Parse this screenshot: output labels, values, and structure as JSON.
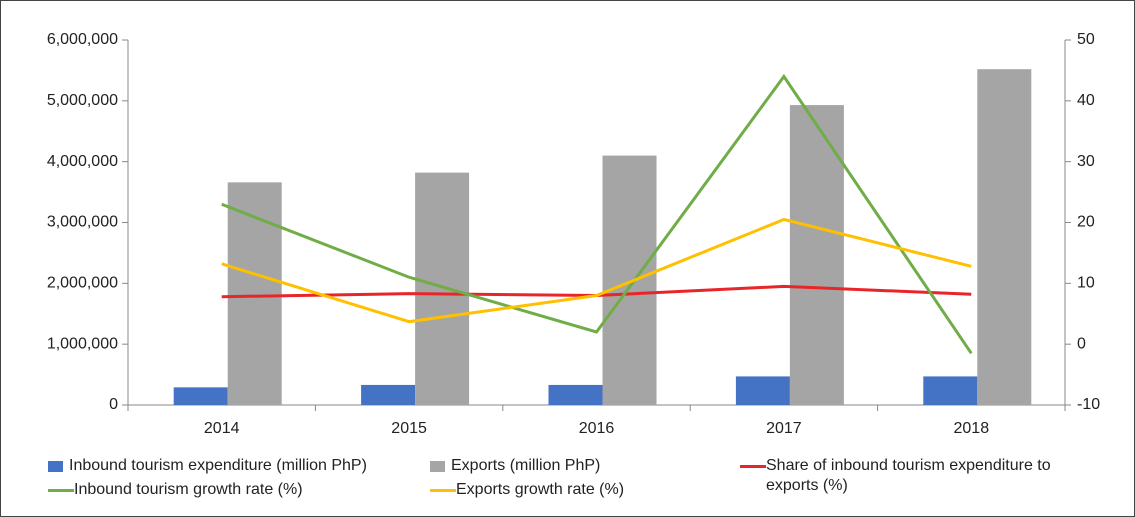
{
  "chart_data": {
    "type": "bar",
    "categories": [
      "2014",
      "2015",
      "2016",
      "2017",
      "2018"
    ],
    "series": [
      {
        "name": "Inbound tourism expenditure (million PhP)",
        "type": "bar",
        "color": "#4472c4",
        "values": [
          290000,
          330000,
          330000,
          470000,
          470000
        ]
      },
      {
        "name": "Exports (million PhP)",
        "type": "bar",
        "color": "#a5a5a5",
        "values": [
          3660000,
          3820000,
          4100000,
          4930000,
          5520000
        ]
      },
      {
        "name": "Share of inbound tourism expenditure to exports (%)",
        "type": "line",
        "axis": "y2",
        "color": "#e8262a",
        "values": [
          7.8,
          8.3,
          8.0,
          9.5,
          8.2
        ]
      },
      {
        "name": "Inbound tourism growth rate (%)",
        "type": "line",
        "axis": "y2",
        "color": "#70ad47",
        "values": [
          23,
          11,
          2,
          44,
          -1.5
        ]
      },
      {
        "name": "Exports growth rate (%)",
        "type": "line",
        "axis": "y2",
        "color": "#ffc000",
        "values": [
          13.2,
          3.7,
          8,
          20.5,
          12.8
        ]
      }
    ],
    "ylim": [
      0,
      6000000
    ],
    "yticks": [
      0,
      {
        "value": 1000000,
        "label": "1,000,000"
      },
      {
        "value": 2000000,
        "label": "2,000,000"
      },
      {
        "value": 3000000,
        "label": "3,000,000"
      },
      {
        "value": 4000000,
        "label": "4,000,000"
      },
      {
        "value": 5000000,
        "label": "5,000,000"
      },
      {
        "value": 6000000,
        "label": "6,000,000"
      }
    ],
    "y2lim": [
      -10,
      50
    ],
    "y2ticks": [
      -10,
      0,
      10,
      20,
      30,
      40,
      50
    ],
    "grid": false
  }
}
